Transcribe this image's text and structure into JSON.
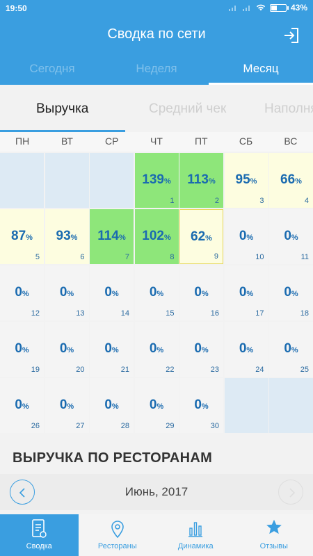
{
  "status_bar": {
    "time": "19:50",
    "battery": "43%",
    "battery_level": 0.43
  },
  "header": {
    "title": "Сводка по сети",
    "period_tabs": [
      {
        "label": "Сегодня",
        "active": false
      },
      {
        "label": "Неделя",
        "active": false
      },
      {
        "label": "Месяц",
        "active": true
      }
    ]
  },
  "metric_tabs": [
    {
      "label": "Выручка",
      "active": true
    },
    {
      "label": "Средний чек",
      "active": false
    },
    {
      "label": "Наполняемость",
      "active": false
    }
  ],
  "weekdays": [
    "ПН",
    "ВТ",
    "СР",
    "ЧТ",
    "ПТ",
    "СБ",
    "ВС"
  ],
  "calendar": {
    "percent_sign": "%",
    "leading_empty": 3,
    "trailing_empty": 2,
    "days": [
      {
        "day": "1",
        "value": "139",
        "status": "green"
      },
      {
        "day": "2",
        "value": "113",
        "status": "green"
      },
      {
        "day": "3",
        "value": "95",
        "status": "yellow"
      },
      {
        "day": "4",
        "value": "66",
        "status": "yellow"
      },
      {
        "day": "5",
        "value": "87",
        "status": "yellow"
      },
      {
        "day": "6",
        "value": "93",
        "status": "yellow"
      },
      {
        "day": "7",
        "value": "114",
        "status": "green"
      },
      {
        "day": "8",
        "value": "102",
        "status": "green"
      },
      {
        "day": "9",
        "value": "62",
        "status": "today"
      },
      {
        "day": "10",
        "value": "0",
        "status": "none"
      },
      {
        "day": "11",
        "value": "0",
        "status": "none"
      },
      {
        "day": "12",
        "value": "0",
        "status": "none"
      },
      {
        "day": "13",
        "value": "0",
        "status": "none"
      },
      {
        "day": "14",
        "value": "0",
        "status": "none"
      },
      {
        "day": "15",
        "value": "0",
        "status": "none"
      },
      {
        "day": "16",
        "value": "0",
        "status": "none"
      },
      {
        "day": "17",
        "value": "0",
        "status": "none"
      },
      {
        "day": "18",
        "value": "0",
        "status": "none"
      },
      {
        "day": "19",
        "value": "0",
        "status": "none"
      },
      {
        "day": "20",
        "value": "0",
        "status": "none"
      },
      {
        "day": "21",
        "value": "0",
        "status": "none"
      },
      {
        "day": "22",
        "value": "0",
        "status": "none"
      },
      {
        "day": "23",
        "value": "0",
        "status": "none"
      },
      {
        "day": "24",
        "value": "0",
        "status": "none"
      },
      {
        "day": "25",
        "value": "0",
        "status": "none"
      },
      {
        "day": "26",
        "value": "0",
        "status": "none"
      },
      {
        "day": "27",
        "value": "0",
        "status": "none"
      },
      {
        "day": "28",
        "value": "0",
        "status": "none"
      },
      {
        "day": "29",
        "value": "0",
        "status": "none"
      },
      {
        "day": "30",
        "value": "0",
        "status": "none"
      }
    ]
  },
  "section": {
    "title": "ВЫРУЧКА ПО РЕСТОРАНАМ",
    "month_label": "Июнь, 2017"
  },
  "bottom_nav": [
    {
      "label": "Сводка",
      "icon": "report-icon",
      "active": true
    },
    {
      "label": "Рестораны",
      "icon": "location-pin-icon",
      "active": false
    },
    {
      "label": "Динамика",
      "icon": "bar-chart-icon",
      "active": false
    },
    {
      "label": "Отзывы",
      "icon": "star-icon",
      "active": false
    }
  ],
  "colors": {
    "accent": "#3a9ee0",
    "green": "#8ee67a",
    "yellow": "#fdfde0",
    "empty": "#ddeaf4",
    "value_text": "#1a6bb0"
  }
}
